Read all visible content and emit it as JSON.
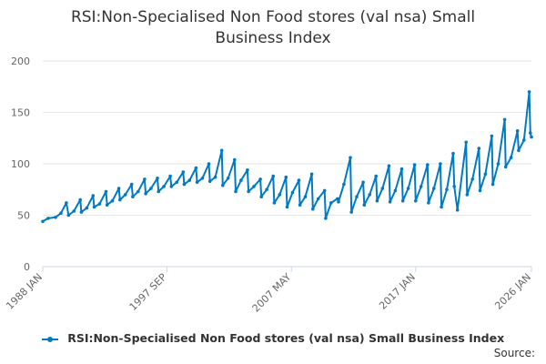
{
  "title_lines": [
    "RSI:Non-Specialised Non Food stores (val nsa) Small",
    "Business Index"
  ],
  "source_label": "Source:",
  "colors": {
    "series": "#007ac3",
    "grid": "#e6e6e6",
    "axis": "#ccd6eb",
    "text": "#666666"
  },
  "chart_data": {
    "type": "line",
    "title": "RSI:Non-Specialised Non Food stores (val nsa) Small Business Index",
    "xlabel": "",
    "ylabel": "",
    "ylim": [
      0,
      200
    ],
    "yticks": [
      0,
      50,
      100,
      150,
      200
    ],
    "xlim": [
      "1988-01",
      "2026-01"
    ],
    "xticks": [
      {
        "x": "1988-01",
        "label": "1988 JAN"
      },
      {
        "x": "1997-09",
        "label": "1997 SEP"
      },
      {
        "x": "2007-05",
        "label": "2007 MAY"
      },
      {
        "x": "2017-01",
        "label": "2017 JAN"
      },
      {
        "x": "2026-01",
        "label": "2026 JAN"
      }
    ],
    "grid": true,
    "legend_position": "bottom",
    "series": [
      {
        "name": "RSI:Non-Specialised Non Food stores (val nsa) Small Business Index",
        "points": [
          [
            "1988-01",
            44
          ],
          [
            "1988-06",
            47
          ],
          [
            "1989-01",
            48
          ],
          [
            "1989-06",
            52
          ],
          [
            "1989-11",
            62
          ],
          [
            "1990-01",
            50
          ],
          [
            "1990-06",
            54
          ],
          [
            "1990-12",
            65
          ],
          [
            "1991-01",
            53
          ],
          [
            "1991-06",
            57
          ],
          [
            "1991-12",
            69
          ],
          [
            "1992-01",
            58
          ],
          [
            "1992-06",
            61
          ],
          [
            "1992-12",
            73
          ],
          [
            "1993-01",
            60
          ],
          [
            "1993-06",
            64
          ],
          [
            "1993-12",
            76
          ],
          [
            "1994-01",
            65
          ],
          [
            "1994-06",
            70
          ],
          [
            "1994-12",
            80
          ],
          [
            "1995-01",
            68
          ],
          [
            "1995-06",
            73
          ],
          [
            "1995-12",
            85
          ],
          [
            "1996-01",
            71
          ],
          [
            "1996-06",
            76
          ],
          [
            "1996-12",
            86
          ],
          [
            "1997-01",
            73
          ],
          [
            "1997-06",
            78
          ],
          [
            "1997-12",
            88
          ],
          [
            "1998-01",
            78
          ],
          [
            "1998-06",
            82
          ],
          [
            "1998-12",
            92
          ],
          [
            "1999-01",
            80
          ],
          [
            "1999-06",
            84
          ],
          [
            "1999-12",
            96
          ],
          [
            "2000-01",
            82
          ],
          [
            "2000-06",
            86
          ],
          [
            "2000-12",
            100
          ],
          [
            "2001-01",
            83
          ],
          [
            "2001-06",
            87
          ],
          [
            "2001-12",
            113
          ],
          [
            "2002-01",
            79
          ],
          [
            "2002-06",
            86
          ],
          [
            "2002-12",
            104
          ],
          [
            "2003-01",
            73
          ],
          [
            "2003-06",
            84
          ],
          [
            "2003-12",
            94
          ],
          [
            "2004-01",
            73
          ],
          [
            "2004-06",
            78
          ],
          [
            "2004-12",
            85
          ],
          [
            "2005-01",
            68
          ],
          [
            "2005-06",
            75
          ],
          [
            "2005-12",
            88
          ],
          [
            "2006-01",
            62
          ],
          [
            "2006-06",
            70
          ],
          [
            "2006-12",
            87
          ],
          [
            "2007-01",
            58
          ],
          [
            "2007-06",
            72
          ],
          [
            "2007-12",
            84
          ],
          [
            "2008-01",
            60
          ],
          [
            "2008-06",
            68
          ],
          [
            "2008-12",
            90
          ],
          [
            "2009-01",
            56
          ],
          [
            "2009-06",
            66
          ],
          [
            "2009-12",
            74
          ],
          [
            "2010-01",
            47
          ],
          [
            "2010-06",
            62
          ],
          [
            "2010-12",
            66
          ],
          [
            "2011-01",
            63
          ],
          [
            "2011-06",
            80
          ],
          [
            "2011-12",
            106
          ],
          [
            "2012-01",
            53
          ],
          [
            "2012-06",
            68
          ],
          [
            "2012-12",
            82
          ],
          [
            "2013-01",
            60
          ],
          [
            "2013-06",
            70
          ],
          [
            "2013-12",
            88
          ],
          [
            "2014-01",
            64
          ],
          [
            "2014-06",
            76
          ],
          [
            "2014-12",
            98
          ],
          [
            "2015-01",
            63
          ],
          [
            "2015-06",
            74
          ],
          [
            "2015-12",
            95
          ],
          [
            "2016-01",
            64
          ],
          [
            "2016-06",
            76
          ],
          [
            "2016-12",
            99
          ],
          [
            "2017-01",
            64
          ],
          [
            "2017-06",
            78
          ],
          [
            "2017-12",
            99
          ],
          [
            "2018-01",
            62
          ],
          [
            "2018-06",
            76
          ],
          [
            "2018-12",
            100
          ],
          [
            "2019-01",
            58
          ],
          [
            "2019-06",
            75
          ],
          [
            "2019-12",
            110
          ],
          [
            "2020-01",
            78
          ],
          [
            "2020-04",
            55
          ],
          [
            "2020-12",
            121
          ],
          [
            "2021-01",
            70
          ],
          [
            "2021-06",
            85
          ],
          [
            "2021-12",
            115
          ],
          [
            "2022-01",
            74
          ],
          [
            "2022-06",
            90
          ],
          [
            "2022-12",
            127
          ],
          [
            "2023-01",
            80
          ],
          [
            "2023-06",
            100
          ],
          [
            "2023-12",
            143
          ],
          [
            "2024-01",
            97
          ],
          [
            "2024-06",
            106
          ],
          [
            "2024-12",
            132
          ],
          [
            "2025-01",
            113
          ],
          [
            "2025-06",
            123
          ],
          [
            "2025-11",
            170
          ],
          [
            "2025-12",
            130
          ],
          [
            "2026-01",
            126
          ]
        ]
      }
    ]
  }
}
